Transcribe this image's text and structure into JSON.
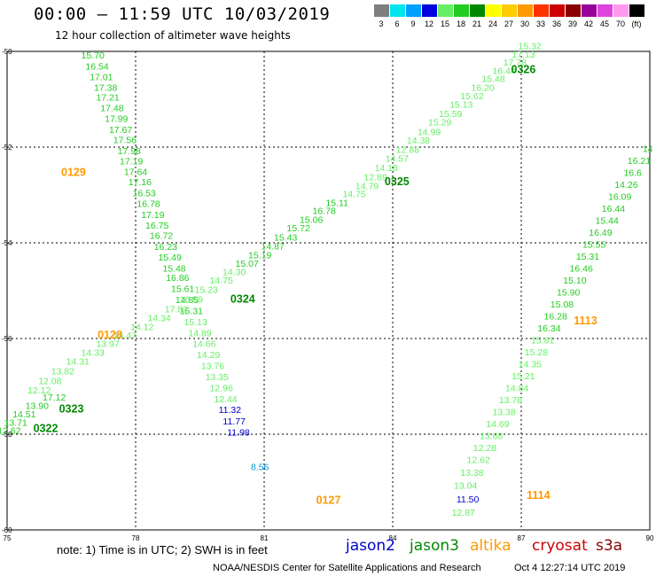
{
  "header": {
    "title": "00:00 – 11:59 UTC 10/03/2019",
    "subtitle": "12 hour collection of altimeter wave heights"
  },
  "color_scale": {
    "stops": [
      {
        "label": "3",
        "color": "#7f7f7f"
      },
      {
        "label": "6",
        "color": "#00e5ee"
      },
      {
        "label": "9",
        "color": "#00a0ff"
      },
      {
        "label": "12",
        "color": "#0000e0"
      },
      {
        "label": "15",
        "color": "#66ee66"
      },
      {
        "label": "18",
        "color": "#22cc22"
      },
      {
        "label": "21",
        "color": "#008800"
      },
      {
        "label": "24",
        "color": "#ffff00"
      },
      {
        "label": "27",
        "color": "#ffcc00"
      },
      {
        "label": "30",
        "color": "#ff9900"
      },
      {
        "label": "33",
        "color": "#ff3300"
      },
      {
        "label": "36",
        "color": "#cc0000"
      },
      {
        "label": "39",
        "color": "#880000"
      },
      {
        "label": "42",
        "color": "#990099"
      },
      {
        "label": "45",
        "color": "#dd44dd"
      },
      {
        "label": "70",
        "color": "#ff99ee"
      },
      {
        "label": "(ft)",
        "color": "#000000"
      }
    ]
  },
  "footer": {
    "note": "note: 1) Time is in UTC; 2) SWH is in feet",
    "credit": "NOAA/NESDIS Center for Satellite Applications and Research",
    "timestamp": "Oct  4 12:27:14 UTC 2019"
  },
  "legend": [
    {
      "name": "jason2",
      "color": "#0000cc"
    },
    {
      "name": "jason3",
      "color": "#008800"
    },
    {
      "name": "altika",
      "color": "#ff9900"
    },
    {
      "name": "cryosat",
      "color": "#cc0000"
    },
    {
      "name": "s3a",
      "color": "#880000"
    }
  ],
  "chart_data": {
    "type": "scatter",
    "x_ticks": [
      "75",
      "78",
      "81",
      "84",
      "87",
      "90"
    ],
    "y_ticks": [
      "-50",
      "-52",
      "-54",
      "-56",
      "-58",
      "-60"
    ],
    "xlim": [
      75,
      90
    ],
    "ylim": [
      -60,
      -50
    ],
    "grid": true,
    "colors": {
      "bright_green": "#22cc22",
      "pale_green": "#66ee66",
      "dark_green": "#008800",
      "orange": "#ff9900",
      "blue": "#0000cc",
      "light_blue": "#0099dd"
    },
    "pass_labels": [
      {
        "text": "0129",
        "lon": 76.55,
        "lat": -52.6,
        "color": "orange"
      },
      {
        "text": "0128",
        "lon": 77.4,
        "lat": -56.0,
        "color": "orange"
      },
      {
        "text": "0127",
        "lon": 82.5,
        "lat": -59.45,
        "color": "orange"
      },
      {
        "text": "1114",
        "lon": 87.4,
        "lat": -59.35,
        "color": "orange"
      },
      {
        "text": "1113",
        "lon": 88.5,
        "lat": -55.7,
        "color": "orange"
      },
      {
        "text": "0326",
        "lon": 87.05,
        "lat": -50.45,
        "color": "dark_green"
      },
      {
        "text": "0325",
        "lon": 84.1,
        "lat": -52.8,
        "color": "dark_green"
      },
      {
        "text": "0324",
        "lon": 80.5,
        "lat": -55.25,
        "color": "dark_green"
      },
      {
        "text": "0323",
        "lon": 76.5,
        "lat": -57.55,
        "color": "dark_green"
      },
      {
        "text": "0322",
        "lon": 75.9,
        "lat": -57.95,
        "color": "dark_green"
      }
    ],
    "tracks": [
      {
        "name": "pass 0129",
        "color": "bright_green",
        "points": [
          {
            "lon": 77.0,
            "lat": -50.15,
            "swh": "15.70"
          },
          {
            "lon": 77.1,
            "lat": -50.38,
            "swh": "16.54"
          },
          {
            "lon": 77.2,
            "lat": -50.6,
            "swh": "17.01"
          },
          {
            "lon": 77.3,
            "lat": -50.82,
            "swh": "17.38"
          },
          {
            "lon": 77.35,
            "lat": -51.03,
            "swh": "17.21"
          },
          {
            "lon": 77.45,
            "lat": -51.25,
            "swh": "17.48"
          },
          {
            "lon": 77.55,
            "lat": -51.47,
            "swh": "17.99"
          },
          {
            "lon": 77.65,
            "lat": -51.7,
            "swh": "17.67"
          },
          {
            "lon": 77.75,
            "lat": -51.92,
            "swh": "17.56"
          },
          {
            "lon": 77.85,
            "lat": -52.15,
            "swh": "17.98"
          },
          {
            "lon": 77.9,
            "lat": -52.36,
            "swh": "17.19"
          },
          {
            "lon": 78.0,
            "lat": -52.58,
            "swh": "17.64"
          },
          {
            "lon": 78.1,
            "lat": -52.8,
            "swh": "17.16"
          },
          {
            "lon": 78.2,
            "lat": -53.03,
            "swh": "16.53"
          },
          {
            "lon": 78.3,
            "lat": -53.25,
            "swh": "16.78"
          },
          {
            "lon": 78.4,
            "lat": -53.48,
            "swh": "17.19"
          },
          {
            "lon": 78.5,
            "lat": -53.7,
            "swh": "16.75"
          },
          {
            "lon": 78.6,
            "lat": -53.92,
            "swh": "16.72"
          },
          {
            "lon": 78.7,
            "lat": -54.15,
            "swh": "16.23"
          },
          {
            "lon": 78.8,
            "lat": -54.37,
            "swh": "15.49"
          },
          {
            "lon": 78.9,
            "lat": -54.6,
            "swh": "15.48"
          },
          {
            "lon": 78.98,
            "lat": -54.8,
            "swh": "16.86"
          },
          {
            "lon": 79.1,
            "lat": -55.03,
            "swh": "15.61"
          },
          {
            "lon": 79.2,
            "lat": -55.26,
            "swh": "14.85"
          },
          {
            "lon": 79.3,
            "lat": -55.49,
            "swh": "15.31"
          }
        ]
      },
      {
        "name": "pass 0128",
        "color": "pale_green",
        "points": [
          {
            "lon": 79.4,
            "lat": -55.72,
            "swh": "15.13"
          },
          {
            "lon": 79.5,
            "lat": -55.95,
            "swh": "14.89"
          },
          {
            "lon": 79.6,
            "lat": -56.18,
            "swh": "14.66"
          },
          {
            "lon": 79.7,
            "lat": -56.41,
            "swh": "14.29"
          },
          {
            "lon": 79.8,
            "lat": -56.64,
            "swh": "13.76"
          },
          {
            "lon": 79.9,
            "lat": -56.87,
            "swh": "13.35"
          },
          {
            "lon": 80.0,
            "lat": -57.1,
            "swh": "12.96"
          },
          {
            "lon": 80.1,
            "lat": -57.33,
            "swh": "12.44"
          }
        ]
      },
      {
        "name": "pass 0127",
        "color": "blue",
        "points": [
          {
            "lon": 80.2,
            "lat": -57.56,
            "swh": "11.32"
          },
          {
            "lon": 80.3,
            "lat": -57.8,
            "swh": "11.77"
          },
          {
            "lon": 80.4,
            "lat": -58.03,
            "swh": "11.98"
          }
        ]
      },
      {
        "name": "pass 0127 tail",
        "color": "light_blue",
        "points": [
          {
            "lon": 80.9,
            "lat": -58.75,
            "swh": "8.56"
          }
        ]
      },
      {
        "name": "pass 0326",
        "color": "pale_green",
        "points": [
          {
            "lon": 87.2,
            "lat": -49.95,
            "swh": "15.32"
          },
          {
            "lon": 87.05,
            "lat": -50.13,
            "swh": "17.13"
          },
          {
            "lon": 86.85,
            "lat": -50.3,
            "swh": "17.78"
          },
          {
            "lon": 86.6,
            "lat": -50.47,
            "swh": "16.44"
          },
          {
            "lon": 86.35,
            "lat": -50.64,
            "swh": "15.48"
          },
          {
            "lon": 86.1,
            "lat": -50.82,
            "swh": "16.20"
          },
          {
            "lon": 85.85,
            "lat": -51.0,
            "swh": "15.62"
          },
          {
            "lon": 85.6,
            "lat": -51.18,
            "swh": "15.13"
          },
          {
            "lon": 85.35,
            "lat": -51.37,
            "swh": "15.59"
          },
          {
            "lon": 85.1,
            "lat": -51.55,
            "swh": "15.29"
          },
          {
            "lon": 84.85,
            "lat": -51.75,
            "swh": "14.99"
          },
          {
            "lon": 84.6,
            "lat": -51.93,
            "swh": "14.38"
          },
          {
            "lon": 84.35,
            "lat": -52.12,
            "swh": "12.88"
          },
          {
            "lon": 84.1,
            "lat": -52.31,
            "swh": "14.57"
          },
          {
            "lon": 83.85,
            "lat": -52.5,
            "swh": "14.18"
          },
          {
            "lon": 83.6,
            "lat": -52.69,
            "swh": "12.89"
          },
          {
            "lon": 83.4,
            "lat": -52.88,
            "swh": "14.79"
          },
          {
            "lon": 83.1,
            "lat": -53.05,
            "swh": "14.75"
          }
        ]
      },
      {
        "name": "pass 0325",
        "color": "bright_green",
        "points": [
          {
            "lon": 82.7,
            "lat": -53.23,
            "swh": "15.11"
          },
          {
            "lon": 82.4,
            "lat": -53.4,
            "swh": "16.78"
          },
          {
            "lon": 82.1,
            "lat": -53.58,
            "swh": "15.06"
          },
          {
            "lon": 81.8,
            "lat": -53.76,
            "swh": "15.72"
          },
          {
            "lon": 81.5,
            "lat": -53.95,
            "swh": "15.43"
          },
          {
            "lon": 81.2,
            "lat": -54.14,
            "swh": "14.87"
          },
          {
            "lon": 80.9,
            "lat": -54.32,
            "swh": "15.19"
          },
          {
            "lon": 80.6,
            "lat": -54.5,
            "swh": "15.07"
          }
        ]
      },
      {
        "name": "pass 0324",
        "color": "pale_green",
        "points": [
          {
            "lon": 80.3,
            "lat": -54.68,
            "swh": "14.30"
          },
          {
            "lon": 80.0,
            "lat": -54.85,
            "swh": "14.75"
          },
          {
            "lon": 79.65,
            "lat": -55.05,
            "swh": "15.23"
          },
          {
            "lon": 79.3,
            "lat": -55.25,
            "swh": "16.59"
          },
          {
            "lon": 78.95,
            "lat": -55.45,
            "swh": "17.82"
          },
          {
            "lon": 78.55,
            "lat": -55.64,
            "swh": "14.34"
          },
          {
            "lon": 78.15,
            "lat": -55.82,
            "swh": "14.12"
          },
          {
            "lon": 77.75,
            "lat": -56.0,
            "swh": "14.47"
          },
          {
            "lon": 77.35,
            "lat": -56.18,
            "swh": "13.97"
          },
          {
            "lon": 77.0,
            "lat": -56.36,
            "swh": "14.33"
          },
          {
            "lon": 76.65,
            "lat": -56.55,
            "swh": "14.31"
          },
          {
            "lon": 76.3,
            "lat": -56.75,
            "swh": "13.82"
          },
          {
            "lon": 76.0,
            "lat": -56.95,
            "swh": "12.08"
          },
          {
            "lon": 75.75,
            "lat": -57.15,
            "swh": "12.12"
          }
        ]
      },
      {
        "name": "pass 0323",
        "color": "bright_green",
        "points": [
          {
            "lon": 76.1,
            "lat": -57.3,
            "swh": "17.12"
          },
          {
            "lon": 75.7,
            "lat": -57.47,
            "swh": "13.90"
          },
          {
            "lon": 75.4,
            "lat": -57.65,
            "swh": "14.51"
          },
          {
            "lon": 75.2,
            "lat": -57.82,
            "swh": "13.71"
          },
          {
            "lon": 75.05,
            "lat": -57.99,
            "swh": "12.62"
          }
        ]
      },
      {
        "name": "pass 1113",
        "color": "bright_green",
        "points": [
          {
            "lon": 89.95,
            "lat": -52.1,
            "swh": "14"
          },
          {
            "lon": 89.75,
            "lat": -52.35,
            "swh": "16.21"
          },
          {
            "lon": 89.6,
            "lat": -52.6,
            "swh": "16.6"
          },
          {
            "lon": 89.45,
            "lat": -52.85,
            "swh": "14.26"
          },
          {
            "lon": 89.3,
            "lat": -53.1,
            "swh": "16.09"
          },
          {
            "lon": 89.15,
            "lat": -53.35,
            "swh": "16.44"
          },
          {
            "lon": 89.0,
            "lat": -53.6,
            "swh": "15.44"
          },
          {
            "lon": 88.85,
            "lat": -53.85,
            "swh": "16.49"
          },
          {
            "lon": 88.7,
            "lat": -54.1,
            "swh": "15.55"
          },
          {
            "lon": 88.55,
            "lat": -54.35,
            "swh": "15.31"
          },
          {
            "lon": 88.4,
            "lat": -54.6,
            "swh": "16.46"
          },
          {
            "lon": 88.25,
            "lat": -54.85,
            "swh": "15.10"
          },
          {
            "lon": 88.1,
            "lat": -55.1,
            "swh": "15.90"
          },
          {
            "lon": 87.95,
            "lat": -55.35,
            "swh": "15.08"
          },
          {
            "lon": 87.8,
            "lat": -55.6,
            "swh": "16.28"
          },
          {
            "lon": 87.65,
            "lat": -55.85,
            "swh": "16.34"
          }
        ]
      },
      {
        "name": "pass 1114",
        "color": "pale_green",
        "points": [
          {
            "lon": 87.5,
            "lat": -56.1,
            "swh": "15.81"
          },
          {
            "lon": 87.35,
            "lat": -56.35,
            "swh": "15.28"
          },
          {
            "lon": 87.2,
            "lat": -56.6,
            "swh": "14.35"
          },
          {
            "lon": 87.05,
            "lat": -56.85,
            "swh": "15.21"
          },
          {
            "lon": 86.9,
            "lat": -57.1,
            "swh": "14.84"
          },
          {
            "lon": 86.75,
            "lat": -57.35,
            "swh": "13.78"
          },
          {
            "lon": 86.6,
            "lat": -57.6,
            "swh": "13.38"
          },
          {
            "lon": 86.45,
            "lat": -57.85,
            "swh": "14.69"
          },
          {
            "lon": 86.3,
            "lat": -58.1,
            "swh": "13.68"
          },
          {
            "lon": 86.15,
            "lat": -58.35,
            "swh": "12.28"
          },
          {
            "lon": 86.0,
            "lat": -58.6,
            "swh": "12.62"
          },
          {
            "lon": 85.85,
            "lat": -58.87,
            "swh": "13.38"
          },
          {
            "lon": 85.7,
            "lat": -59.14,
            "swh": "13.04"
          }
        ]
      },
      {
        "name": "pass 1114 tail",
        "color": "blue",
        "points": [
          {
            "lon": 85.75,
            "lat": -59.43,
            "swh": "11.50"
          }
        ]
      },
      {
        "name": "pass 1114 end",
        "color": "pale_green",
        "points": [
          {
            "lon": 85.65,
            "lat": -59.7,
            "swh": "12.87"
          }
        ]
      }
    ]
  }
}
